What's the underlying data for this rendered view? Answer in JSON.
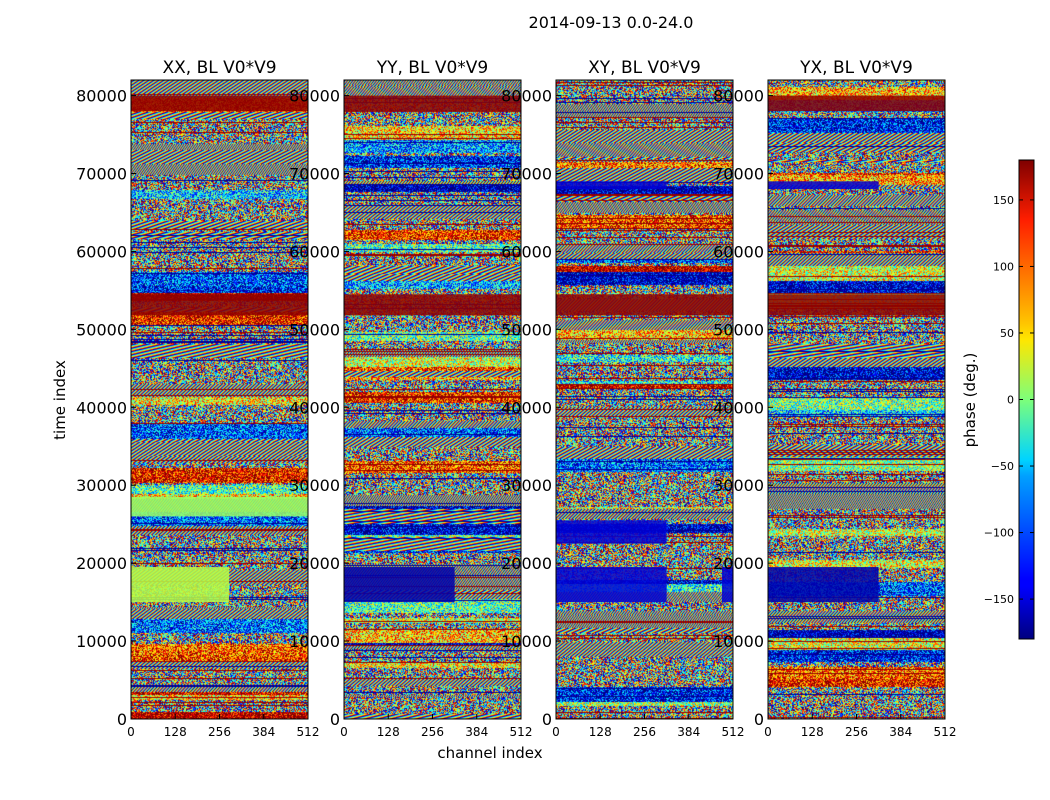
{
  "chart_data": {
    "type": "heatmap",
    "title": "2014-09-13 0.0-24.0",
    "xlabel": "channel index",
    "ylabel": "time index",
    "xlim": [
      0,
      512
    ],
    "ylim": [
      0,
      82000
    ],
    "x_ticks": [
      0,
      128,
      256,
      384,
      512
    ],
    "y_ticks": [
      0,
      10000,
      20000,
      30000,
      40000,
      50000,
      60000,
      70000,
      80000
    ],
    "colorbar": {
      "label": "phase (deg.)",
      "range": [
        -180,
        180
      ],
      "ticks": [
        -150,
        -100,
        -50,
        0,
        50,
        100,
        150
      ],
      "colormap": "jet"
    },
    "panels": [
      {
        "title": "XX, BL V0*V9",
        "features": [
          {
            "t0": 15000,
            "t1": 19500,
            "c0": 0,
            "c1": 284,
            "phase_deg": 20
          },
          {
            "t0": 51800,
            "t1": 54500,
            "c0": 0,
            "c1": 512,
            "phase_deg": 175
          },
          {
            "t0": 78000,
            "t1": 80000,
            "c0": 0,
            "c1": 512,
            "phase_deg": 175
          },
          {
            "t0": 26000,
            "t1": 28500,
            "c0": 0,
            "c1": 512,
            "phase_deg": 10
          }
        ]
      },
      {
        "title": "YY, BL V0*V9",
        "features": [
          {
            "t0": 15000,
            "t1": 19500,
            "c0": 0,
            "c1": 320,
            "phase_deg": -165
          },
          {
            "t0": 51800,
            "t1": 54500,
            "c0": 0,
            "c1": 512,
            "phase_deg": 175
          },
          {
            "t0": 78000,
            "t1": 80000,
            "c0": 0,
            "c1": 512,
            "phase_deg": 175
          }
        ]
      },
      {
        "title": "XY, BL V0*V9",
        "features": [
          {
            "t0": 15000,
            "t1": 19500,
            "c0": 0,
            "c1": 320,
            "phase_deg": -150
          },
          {
            "t0": 15000,
            "t1": 19500,
            "c0": 480,
            "c1": 512,
            "phase_deg": -150
          },
          {
            "t0": 22500,
            "t1": 25500,
            "c0": 0,
            "c1": 320,
            "phase_deg": -150
          },
          {
            "t0": 51800,
            "t1": 54500,
            "c0": 0,
            "c1": 512,
            "phase_deg": 175
          },
          {
            "t0": 68000,
            "t1": 69000,
            "c0": 0,
            "c1": 320,
            "phase_deg": -150
          }
        ]
      },
      {
        "title": "YX, BL V0*V9",
        "features": [
          {
            "t0": 15000,
            "t1": 19500,
            "c0": 0,
            "c1": 320,
            "phase_deg": -165
          },
          {
            "t0": 51800,
            "t1": 54500,
            "c0": 0,
            "c1": 512,
            "phase_deg": 175
          },
          {
            "t0": 78000,
            "t1": 80000,
            "c0": 0,
            "c1": 512,
            "phase_deg": 175
          },
          {
            "t0": 68000,
            "t1": 69000,
            "c0": 0,
            "c1": 320,
            "phase_deg": -150
          }
        ]
      }
    ]
  }
}
